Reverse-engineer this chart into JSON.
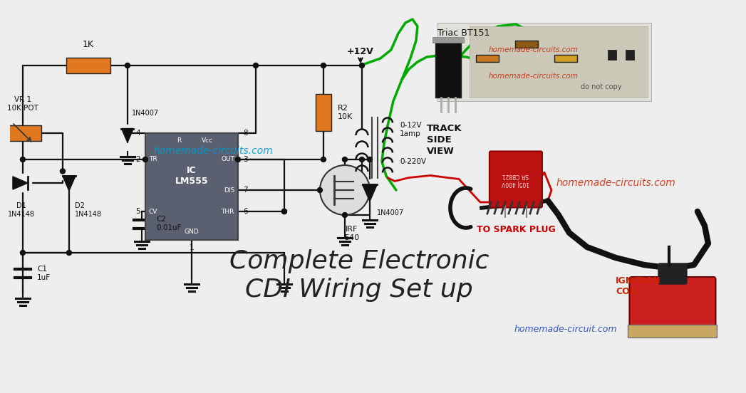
{
  "bg_color": "#eeeeee",
  "title": "Complete Electronic\nCDI Wiring Set up",
  "title_color": "#222222",
  "title_fontsize": 26,
  "watermark_blue": "homemade-circuits.com",
  "watermark_blue_color": "#0099cc",
  "watermark_red1": "homemade-circuits.com",
  "watermark_red1_color": "#cc2200",
  "watermark_red2": "homemade-circuits.com",
  "watermark_red2_color": "#cc2200",
  "watermark_red3": "homemade-circuits.com",
  "watermark_red3_color": "#cc2200",
  "watermark_blue2": "homemade-circuit.com",
  "watermark_blue2_color": "#2244bb",
  "do_not_copy": "do not copy",
  "lm555_color": "#5a6070",
  "resistor_color": "#e07820",
  "wire_color": "#111111",
  "green_wire": "#00aa00",
  "red_wire": "#cc0000",
  "plus12v_label": "+12V",
  "triac_label": "Triac BT151",
  "track_label": "TRACK\nSIDE\nVIEW",
  "vr1_label": "VR 1\n10K POT",
  "r1_label": "1K",
  "r2_label": "R2\n10K",
  "d1_label": "D1\n1N4148",
  "d2_label": "D2\n1N4148",
  "d3_label": "1N4007",
  "d4_label": "1N4007",
  "c1_label": "C1\n1uF",
  "c2_label": "C2\n0.01uF",
  "ic_label": "IC\nLM555",
  "mosfet_label": "IRF\n540",
  "transformer_label1": "0-12V\n1amp",
  "transformer_label2": "0-220V",
  "spark_plug_label": "TO SPARK PLUG",
  "ignition_label": "IGNITION\nCOIL",
  "cap_text": "105J 400V\nSR CB821"
}
